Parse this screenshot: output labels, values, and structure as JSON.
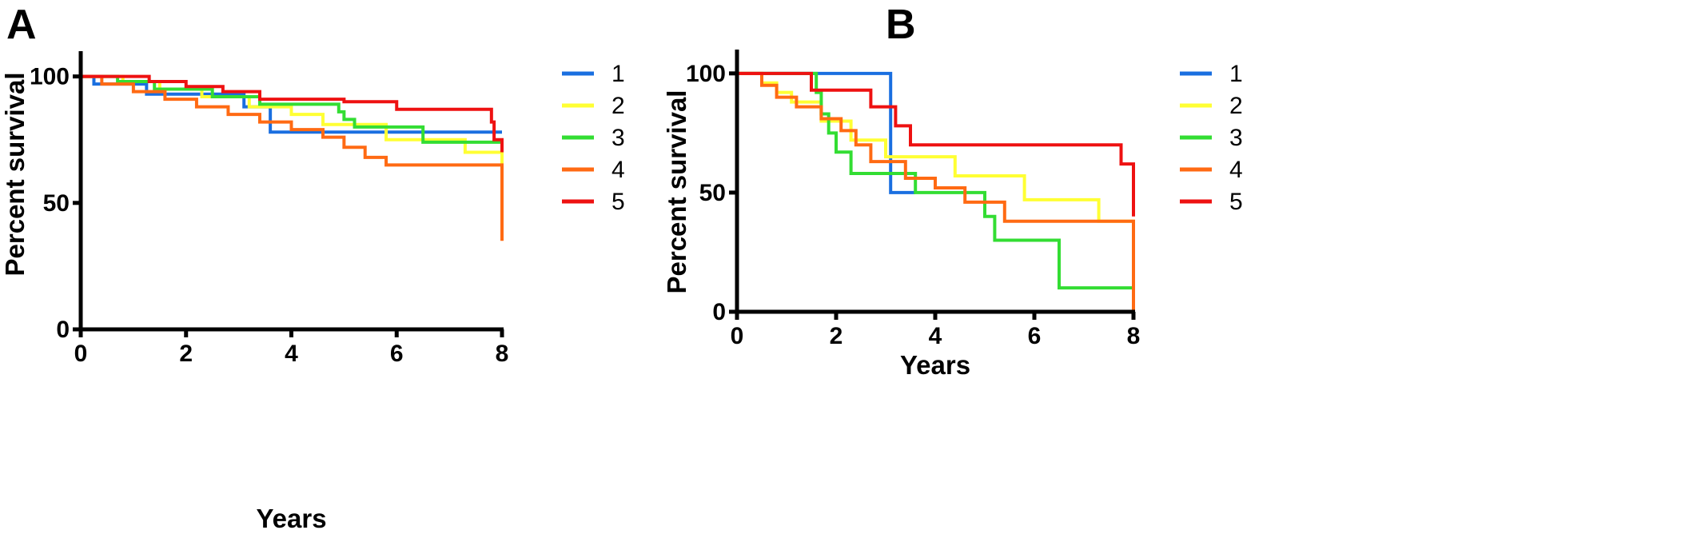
{
  "chart_data": [
    {
      "panel": "A",
      "type": "line",
      "xlabel": "Years",
      "ylabel": "Percent survival",
      "xlim": [
        0,
        8
      ],
      "ylim": [
        0,
        110
      ],
      "xticks": [
        0,
        2,
        4,
        6,
        8
      ],
      "yticks": [
        0,
        50,
        100
      ],
      "legend": "right",
      "series": [
        {
          "name": "1",
          "color": "#1a6fe0",
          "x": [
            0,
            0.25,
            1.25,
            3.1,
            3.6,
            8
          ],
          "y": [
            100,
            97,
            93,
            88,
            78,
            78
          ]
        },
        {
          "name": "2",
          "color": "#ffff33",
          "x": [
            0,
            0.8,
            1.5,
            2.3,
            3.2,
            4,
            4.6,
            5.8,
            7.3,
            8,
            8
          ],
          "y": [
            100,
            98,
            95,
            92,
            88,
            85,
            81,
            75,
            70,
            70,
            45
          ]
        },
        {
          "name": "3",
          "color": "#33dd33",
          "x": [
            0,
            0.7,
            1.4,
            2.5,
            3.4,
            4.9,
            5.0,
            5.2,
            5.4,
            6.5,
            8,
            8
          ],
          "y": [
            100,
            98,
            95,
            92,
            89,
            86,
            83,
            80,
            80,
            74,
            74,
            70
          ]
        },
        {
          "name": "4",
          "color": "#ff6a13",
          "x": [
            0,
            0.4,
            1.0,
            1.6,
            2.2,
            2.8,
            3.4,
            4.0,
            4.6,
            5.0,
            5.4,
            5.8,
            8,
            8
          ],
          "y": [
            100,
            97,
            94,
            91,
            88,
            85,
            82,
            79,
            76,
            72,
            68,
            65,
            65,
            35
          ]
        },
        {
          "name": "5",
          "color": "#ee1111",
          "x": [
            0,
            1.3,
            2.0,
            2.7,
            3.4,
            5.0,
            6.0,
            7.8,
            7.85,
            8
          ],
          "y": [
            100,
            98,
            96,
            94,
            91,
            90,
            87,
            82,
            75,
            70
          ]
        }
      ]
    },
    {
      "panel": "B",
      "type": "line",
      "xlabel": "Years",
      "ylabel": "Percent survival",
      "xlim": [
        0,
        8
      ],
      "ylim": [
        0,
        110
      ],
      "xticks": [
        0,
        2,
        4,
        6,
        8
      ],
      "yticks": [
        0,
        50,
        100
      ],
      "legend": "right",
      "series": [
        {
          "name": "1",
          "color": "#1a6fe0",
          "x": [
            0,
            3.1,
            3.1,
            3.6
          ],
          "y": [
            100,
            100,
            50,
            50
          ]
        },
        {
          "name": "2",
          "color": "#ffff33",
          "x": [
            0,
            0.5,
            0.8,
            1.1,
            1.7,
            2.3,
            3.0,
            3.6,
            4.4,
            5.8,
            7.3,
            8,
            8
          ],
          "y": [
            100,
            96,
            92,
            88,
            80,
            72,
            65,
            65,
            57,
            47,
            38,
            38,
            0
          ]
        },
        {
          "name": "3",
          "color": "#33dd33",
          "x": [
            0,
            1.6,
            1.7,
            1.85,
            2.0,
            2.3,
            2.65,
            3.6,
            5.0,
            5.2,
            6.5,
            8
          ],
          "y": [
            100,
            92,
            83,
            75,
            67,
            58,
            58,
            50,
            40,
            30,
            10,
            10
          ]
        },
        {
          "name": "4",
          "color": "#ff6a13",
          "x": [
            0,
            0.5,
            0.8,
            1.2,
            1.7,
            2.1,
            2.4,
            2.7,
            3.4,
            4.0,
            4.6,
            5.4,
            8,
            8
          ],
          "y": [
            100,
            95,
            90,
            86,
            81,
            76,
            70,
            63,
            56,
            52,
            46,
            38,
            38,
            0
          ]
        },
        {
          "name": "5",
          "color": "#ee1111",
          "x": [
            0,
            1.5,
            2.7,
            3.2,
            3.5,
            7.7,
            7.75,
            8,
            8
          ],
          "y": [
            100,
            93,
            86,
            78,
            70,
            70,
            62,
            52,
            40
          ]
        }
      ]
    }
  ]
}
